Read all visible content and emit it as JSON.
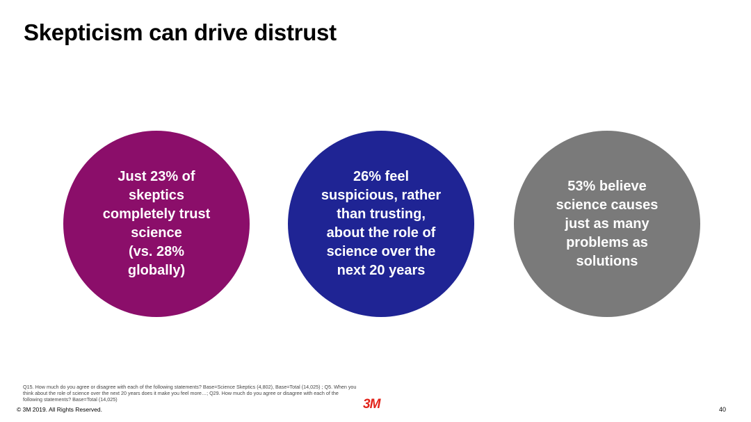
{
  "title": "Skepticism can drive distrust",
  "circles": [
    {
      "text": "Just 23% of\nskeptics\ncompletely trust\nscience\n(vs. 28%\nglobally)",
      "color": "#8b0e6a"
    },
    {
      "text": "26% feel\nsuspicious, rather\nthan trusting,\nabout the role of\nscience over the\nnext 20 years",
      "color": "#1f2494"
    },
    {
      "text": "53% believe\nscience causes\njust as many\nproblems as\nsolutions",
      "color": "#7a7a7a"
    }
  ],
  "footnote": "Q15. How much do you agree or disagree with each of the following statements? Base=Science Skeptics (4,802), Base=Total (14,025) ; Q5. When you think about the role of science over the next 20 years does it make you feel more…; Q29. How much do you agree or disagree with each of the following statements? Base=Total (14,025)",
  "copyright": "© 3M 2019.   All Rights Reserved.",
  "logo": {
    "text": "3M",
    "color": "#e2231a"
  },
  "page_number": "40"
}
